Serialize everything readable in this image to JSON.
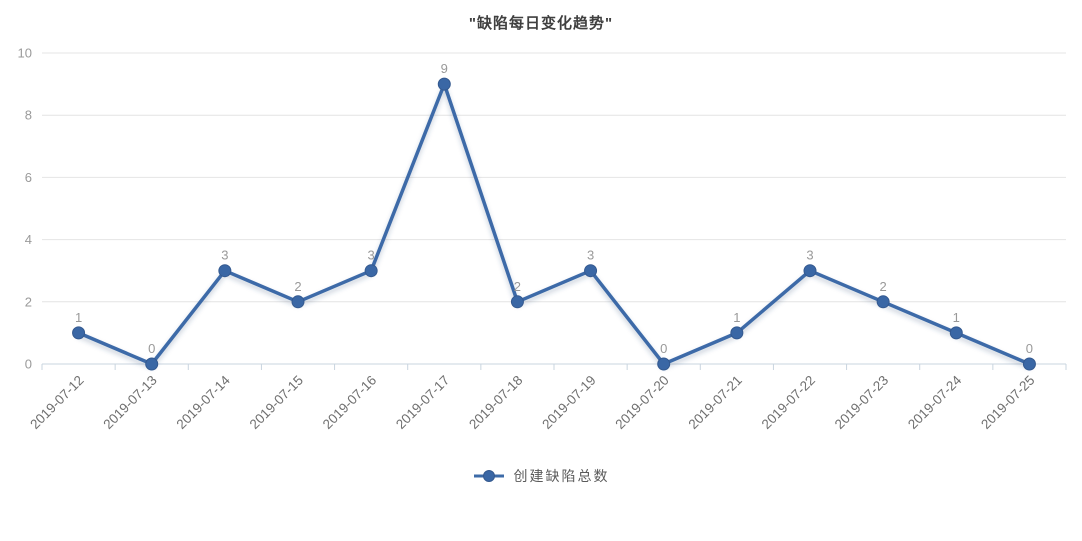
{
  "chart_data": {
    "type": "line",
    "title": "\"缺陷每日变化趋势\"",
    "categories": [
      "2019-07-12",
      "2019-07-13",
      "2019-07-14",
      "2019-07-15",
      "2019-07-16",
      "2019-07-17",
      "2019-07-18",
      "2019-07-19",
      "2019-07-20",
      "2019-07-21",
      "2019-07-22",
      "2019-07-23",
      "2019-07-24",
      "2019-07-25"
    ],
    "series": [
      {
        "name": "创建缺陷总数",
        "values": [
          1,
          0,
          3,
          2,
          3,
          9,
          2,
          3,
          0,
          1,
          3,
          2,
          1,
          0
        ]
      }
    ],
    "xlabel": "",
    "ylabel": "",
    "ylim": [
      0,
      10
    ],
    "yticks": [
      0,
      2,
      4,
      6,
      8,
      10
    ],
    "grid": true,
    "legend_position": "bottom",
    "data_labels": true,
    "colors": {
      "line": "#3d6ba8",
      "marker_fill": "#3a67a5",
      "marker_stroke": "#34598f",
      "data_label": "#999999",
      "y_axis_label": "#9a9a9a",
      "x_axis_label": "#6f6f6f",
      "gridline": "#e4e4e4",
      "axis_line": "#c9d4df",
      "title": "#404040"
    }
  }
}
